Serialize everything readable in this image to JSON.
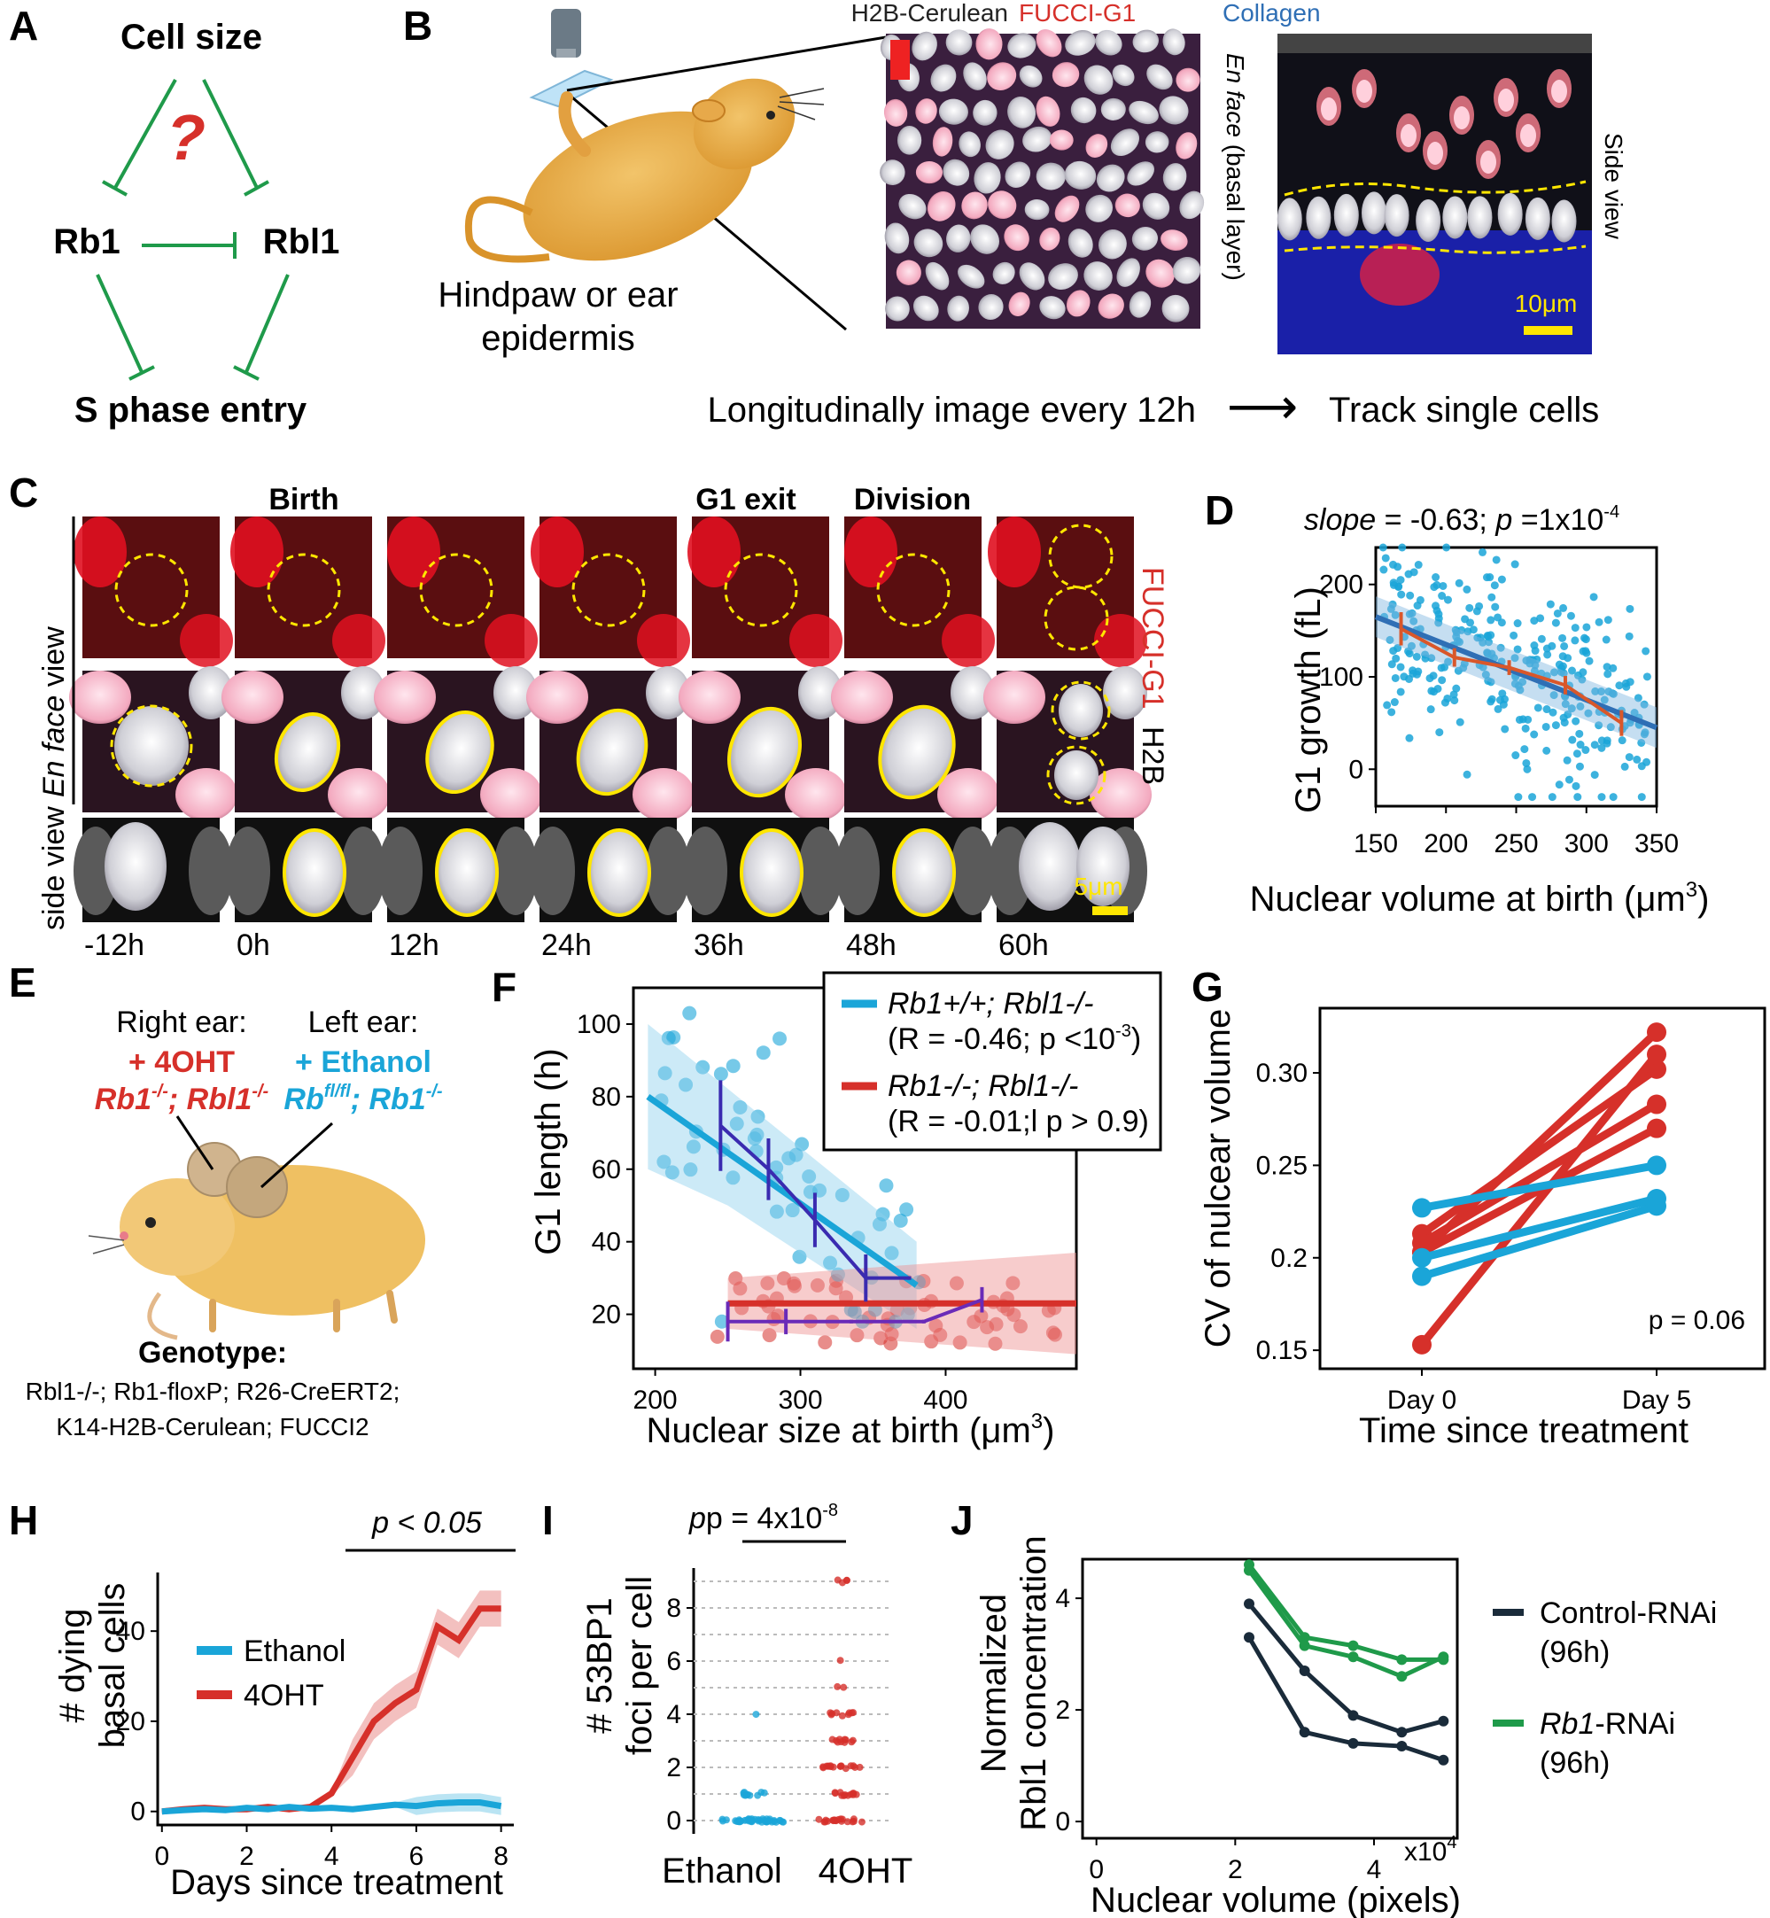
{
  "colors": {
    "green": "#1f9a4a",
    "red": "#d6302a",
    "cyan": "#1aa5d8",
    "navy": "#1a2b3a",
    "blue": "#2f6fb5",
    "purple": "#6a2bb8",
    "yellow": "#ffe600",
    "orange": "#d9572a"
  },
  "panelA": {
    "label": "A",
    "cell_size": "Cell size",
    "question": "?",
    "rb1": "Rb1",
    "rbl1": "Rbl1",
    "s_phase": "S phase entry"
  },
  "panelB": {
    "label": "B",
    "h2b": "H2B-Cerulean",
    "fucci": "FUCCI-G1",
    "collagen": "Collagen",
    "en_face": "En face",
    "basal": " (basal layer)",
    "side_view": "Side view",
    "scale": "10μm",
    "caption_line1": "Hindpaw or ear",
    "caption_line2": "epidermis",
    "longitudinal": "Longitudinally image every 12h",
    "arrow": "⟶",
    "track": "Track single cells"
  },
  "panelC": {
    "label": "C",
    "events": [
      "Birth",
      "G1 exit",
      "Division"
    ],
    "times": [
      "-12h",
      "0h",
      "12h",
      "24h",
      "36h",
      "48h",
      "60h"
    ],
    "en_face_italic": "En face",
    "view": " view",
    "fucci": "FUCCI-G1",
    "h2b": "H2B",
    "side_view": "side view",
    "scale": "5μm"
  },
  "panelD": {
    "label": "D",
    "title_slope": "slope",
    "title_rest": " = -0.63; ",
    "title_p": "p",
    "title_prest": " =1x10",
    "title_exp": "-4",
    "ylabel": "G1 growth (fL)",
    "xlabel": "Nuclear volume at birth (μm",
    "xlabel_exp": "3",
    "xlabel_end": ")",
    "chart_data": {
      "type": "scatter",
      "title": "slope = -0.63; p =1x10-4",
      "xlabel": "Nuclear volume at birth (μm3)",
      "ylabel": "G1 growth (fL)",
      "xlim": [
        150,
        350
      ],
      "ylim": [
        -40,
        240
      ],
      "xticks": [
        150,
        200,
        250,
        300,
        350
      ],
      "yticks": [
        0,
        100,
        200
      ],
      "fit_line": {
        "x": [
          150,
          350
        ],
        "y": [
          165,
          45
        ]
      },
      "binned_means": {
        "x": [
          168,
          206,
          245,
          285,
          325
        ],
        "y": [
          152,
          121,
          110,
          91,
          50
        ],
        "err": [
          18,
          10,
          8,
          10,
          14
        ]
      },
      "points_n": 300,
      "points_x_range": [
        155,
        345
      ],
      "points_y_range": [
        -30,
        240
      ]
    }
  },
  "panelE": {
    "label": "E",
    "right_ear": "Right ear:",
    "right_treat": "+ 4OHT",
    "right_geno_a": "Rb1",
    "right_geno_a_sup": "-/-",
    "right_geno_b": "; Rbl1",
    "right_geno_b_sup": "-/-",
    "left_ear": "Left ear:",
    "left_treat": "+ Ethanol",
    "left_geno_a": "Rb",
    "left_geno_a_sup": "fl/fl",
    "left_geno_b": "; Rb1",
    "left_geno_b_sup": "-/-",
    "genotype_title": "Genotype:",
    "genotype_line1": "Rbl1-/-; Rb1-floxP; R26-CreERT2;",
    "genotype_line2": "K14-H2B-Cerulean; FUCCI2"
  },
  "panelF": {
    "label": "F",
    "ylabel": "G1 length (h)",
    "xlabel": "Nuclear size at birth (μm",
    "xlabel_exp": "3",
    "xlabel_end": ")",
    "legend1_name": "Rb1+/+; Rbl1-/-",
    "legend1_stat": "(R = -0.46; p <10",
    "legend1_exp": "-3",
    "legend1_end": ")",
    "legend2_name": "Rb1-/-; Rbl1-/-",
    "legend2_stat": "(R = -0.01;l p > 0.9)",
    "chart_data": {
      "type": "scatter",
      "xlabel": "Nuclear size at birth (μm3)",
      "ylabel": "G1 length (h)",
      "xlim": [
        185,
        490
      ],
      "ylim": [
        5,
        110
      ],
      "xticks": [
        200,
        300,
        400
      ],
      "yticks": [
        20,
        40,
        60,
        80,
        100
      ],
      "series": [
        {
          "name": "Rb1+/+; Rbl1-/-",
          "fit": {
            "x": [
              195,
              380
            ],
            "y": [
              80,
              28
            ]
          },
          "binned": {
            "x": [
              245,
              278,
              310,
              345,
              375
            ],
            "y": [
              72,
              60,
              46,
              30,
              30
            ],
            "err": [
              12,
              8,
              7,
              6,
              0
            ]
          }
        },
        {
          "name": "Rb1-/-; Rbl1-/-",
          "fit": {
            "x": [
              250,
              490
            ],
            "y": [
              23,
              23
            ]
          },
          "binned": {
            "x": [
              250,
              290,
              335,
              385,
              425
            ],
            "y": [
              18,
              18,
              18,
              18,
              24
            ],
            "err": [
              5,
              3,
              0,
              0,
              3
            ]
          }
        }
      ]
    }
  },
  "panelG": {
    "label": "G",
    "ylabel": "CV of nulcear volume",
    "xlabel": "Time since treatment",
    "pval": "p = 0.06",
    "chart_data": {
      "type": "line",
      "categories": [
        "Day 0",
        "Day 5"
      ],
      "ylim": [
        0.14,
        0.335
      ],
      "yticks": [
        0.15,
        0.2,
        0.25,
        0.3
      ],
      "ytick_labels": [
        "0.15",
        "0.2",
        "0.25",
        "0.30"
      ],
      "series": [
        {
          "name": "4OHT",
          "values": [
            [
              0.203,
              0.322
            ],
            [
              0.213,
              0.302
            ],
            [
              0.208,
              0.283
            ],
            [
              0.203,
              0.27
            ],
            [
              0.153,
              0.31
            ]
          ]
        },
        {
          "name": "Ethanol",
          "values": [
            [
              0.227,
              0.25
            ],
            [
              0.2,
              0.232
            ],
            [
              0.19,
              0.228
            ]
          ]
        }
      ]
    }
  },
  "panelH": {
    "label": "H",
    "ylabel_top": "# dying",
    "ylabel_bot": "basal cells",
    "xlabel": "Days since treatment",
    "pval": "p < 0.05",
    "legend": [
      "Ethanol",
      "4OHT"
    ],
    "chart_data": {
      "type": "line",
      "xlabel": "Days since treatment",
      "ylabel": "# dying basal cells",
      "xlim": [
        -0.1,
        8.3
      ],
      "ylim": [
        -3,
        53
      ],
      "xticks": [
        0,
        2,
        4,
        6,
        8
      ],
      "yticks": [
        0,
        20,
        40
      ],
      "series": [
        {
          "name": "Ethanol",
          "x": [
            0,
            0.5,
            1,
            1.5,
            2,
            2.5,
            3,
            3.5,
            4,
            4.5,
            5,
            5.5,
            6,
            6.5,
            7,
            7.5,
            8
          ],
          "y": [
            0,
            0.3,
            0.5,
            0.3,
            0.8,
            0.5,
            1,
            0.6,
            0.8,
            0.5,
            1,
            1.5,
            1.2,
            1.8,
            2,
            2,
            1.2
          ]
        },
        {
          "name": "4OHT",
          "x": [
            0,
            0.5,
            1,
            1.5,
            2,
            2.5,
            3,
            3.5,
            4,
            4.5,
            5,
            5.5,
            6,
            6.5,
            7,
            7.5,
            8
          ],
          "y": [
            0,
            0.5,
            0.8,
            0.5,
            0.5,
            1,
            0.5,
            1,
            4,
            12,
            20,
            24,
            27,
            41,
            38,
            45,
            45
          ]
        }
      ]
    }
  },
  "panelI": {
    "label": "I",
    "pval": "p = 4x10",
    "pval_exp": "-8",
    "ylabel_top": "# 53BP1",
    "ylabel_bot": "foci per cell",
    "categories": [
      "Ethanol",
      "4OHT"
    ],
    "chart_data": {
      "type": "scatter",
      "categories": [
        "Ethanol",
        "4OHT"
      ],
      "ylabel": "# 53BP1 foci per cell",
      "ylim": [
        -0.5,
        9.5
      ],
      "yticks": [
        0,
        2,
        4,
        6,
        8
      ],
      "counts": {
        "Ethanol": {
          "0": 45,
          "1": 10,
          "4": 1
        },
        "4OHT": {
          "0": 20,
          "1": 12,
          "2": 16,
          "3": 10,
          "4": 9,
          "5": 2,
          "6": 1,
          "9": 4
        }
      }
    }
  },
  "panelJ": {
    "label": "J",
    "ylabel_top": "Normalized",
    "ylabel_bot": "Rbl1 concentration",
    "xlabel": "Nuclear volume (pixels)",
    "x_exp": "x10",
    "x_exp_sup": "4",
    "legend1": "Control-RNAi",
    "legend1b": "(96h)",
    "legend2_i": "Rb1",
    "legend2": "-RNAi",
    "legend2b": "(96h)",
    "chart_data": {
      "type": "line",
      "xlabel": "Nuclear volume (pixels)",
      "ylabel": "Normalized Rbl1 concentration",
      "xlim": [
        -0.2,
        5.2
      ],
      "ylim": [
        -0.3,
        4.7
      ],
      "xticks": [
        0,
        2,
        4
      ],
      "yticks": [
        0,
        2,
        4
      ],
      "series": [
        {
          "name": "Control-RNAi (96h)",
          "lines": [
            {
              "x": [
                2.2,
                3,
                3.7,
                4.4,
                5
              ],
              "y": [
                3.9,
                2.7,
                1.9,
                1.6,
                1.8
              ]
            },
            {
              "x": [
                2.2,
                3,
                3.7,
                4.4,
                5
              ],
              "y": [
                3.3,
                1.6,
                1.4,
                1.35,
                1.1
              ]
            }
          ]
        },
        {
          "name": "Rb1-RNAi (96h)",
          "lines": [
            {
              "x": [
                2.2,
                3,
                3.7,
                4.4,
                5
              ],
              "y": [
                4.6,
                3.3,
                3.15,
                2.9,
                2.9
              ]
            },
            {
              "x": [
                2.2,
                3,
                3.7,
                4.4,
                5
              ],
              "y": [
                4.5,
                3.15,
                2.95,
                2.6,
                2.95
              ]
            }
          ]
        }
      ]
    }
  }
}
